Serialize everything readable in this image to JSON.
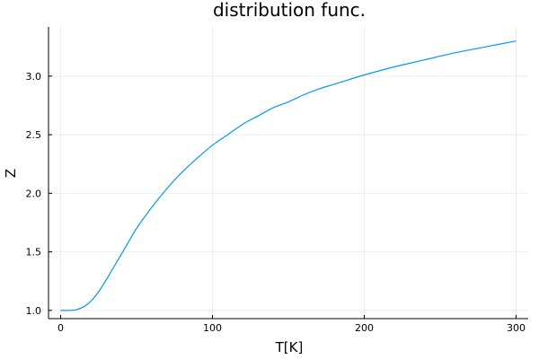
{
  "chart_data": {
    "type": "line",
    "title": "distribution func.",
    "xlabel": "T[K]",
    "ylabel": "Z",
    "xlim": [
      -8,
      308
    ],
    "ylim": [
      0.93,
      3.42
    ],
    "xticks": [
      0,
      100,
      200,
      300
    ],
    "yticks": [
      1.0,
      1.5,
      2.0,
      2.5,
      3.0
    ],
    "xtick_labels": [
      "0",
      "100",
      "200",
      "300"
    ],
    "ytick_labels": [
      "1.0",
      "1.5",
      "2.0",
      "2.5",
      "3.0"
    ],
    "grid": true,
    "legend": "none",
    "series": [
      {
        "color": "#009af9",
        "x": [
          0,
          5,
          10,
          15,
          20,
          25,
          30,
          35,
          40,
          45,
          50,
          60,
          70,
          80,
          90,
          100,
          110,
          120,
          130,
          140,
          150,
          160,
          170,
          180,
          190,
          200,
          220,
          240,
          260,
          280,
          300
        ],
        "y": [
          1.0,
          1.0,
          1.005,
          1.03,
          1.08,
          1.16,
          1.26,
          1.37,
          1.48,
          1.59,
          1.7,
          1.88,
          2.04,
          2.18,
          2.3,
          2.41,
          2.5,
          2.59,
          2.66,
          2.73,
          2.78,
          2.84,
          2.89,
          2.93,
          2.97,
          3.01,
          3.08,
          3.14,
          3.2,
          3.25,
          3.3
        ]
      }
    ]
  }
}
